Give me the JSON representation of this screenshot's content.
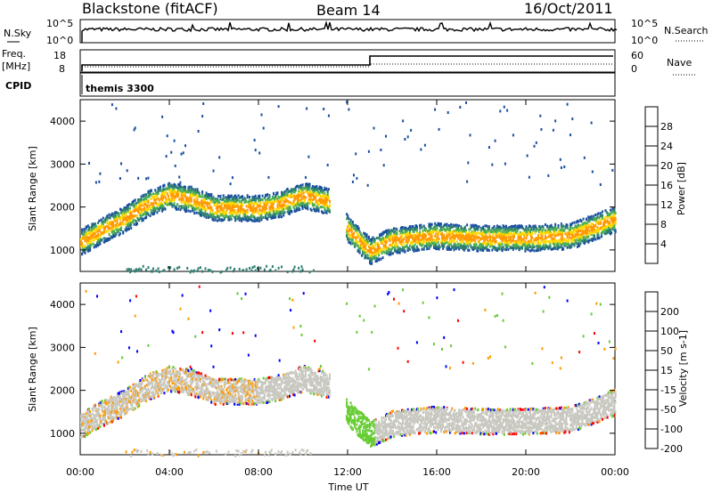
{
  "header": {
    "station": "Blackstone (fitACF)",
    "beam": "Beam 14",
    "date": "16/Oct/2011"
  },
  "panels": {
    "noise": {
      "left_label": "N.Sky",
      "right_label": "N.Search",
      "left_ticks": [
        "10^5",
        "10^0"
      ],
      "right_ticks": [
        "10^5",
        "10^0"
      ]
    },
    "freq": {
      "left_label_1": "Freq.",
      "left_label_2": "[MHz]",
      "left_ticks": [
        "18",
        "8"
      ],
      "right_label": "Nave",
      "right_ticks": [
        "60",
        "0"
      ]
    },
    "cpid": {
      "label": "CPID",
      "value": "themis 3300"
    }
  },
  "colors": {
    "power_scale": [
      "#0000ff",
      "#1a4fa0",
      "#2e7e73",
      "#4caf50",
      "#ffd700",
      "#ff9900",
      "#ff5500",
      "#ff0000"
    ],
    "velocity_scale": [
      "#0000ff",
      "#1a4fa0",
      "#2e7e73",
      "#66cc33",
      "#c8c8c0",
      "#ff9900",
      "#ff6600",
      "#ff0000"
    ]
  },
  "chart_data": [
    {
      "type": "heatmap",
      "name": "power",
      "xlabel": "",
      "ylabel": "Slant Range [km]",
      "xlim": [
        0,
        24
      ],
      "ylim": [
        500,
        4500
      ],
      "yticks": [
        1000,
        2000,
        3000,
        4000
      ],
      "colorbar": {
        "label": "Power [dB]",
        "ticks": [
          "4",
          "8",
          "12",
          "16",
          "20",
          "24",
          "28"
        ]
      },
      "scatter_band": [
        {
          "t": 0.0,
          "range": 1200
        },
        {
          "t": 1.0,
          "range": 1500
        },
        {
          "t": 2.0,
          "range": 1750
        },
        {
          "t": 3.0,
          "range": 2100
        },
        {
          "t": 4.0,
          "range": 2300
        },
        {
          "t": 5.0,
          "range": 2200
        },
        {
          "t": 6.0,
          "range": 2000
        },
        {
          "t": 7.0,
          "range": 2000
        },
        {
          "t": 8.0,
          "range": 2000
        },
        {
          "t": 9.0,
          "range": 2100
        },
        {
          "t": 10.0,
          "range": 2300
        },
        {
          "t": 11.5,
          "range": 2100
        },
        {
          "t": 12.0,
          "range": 1500
        },
        {
          "t": 13.0,
          "range": 1000
        },
        {
          "t": 14.0,
          "range": 1250
        },
        {
          "t": 16.0,
          "range": 1350
        },
        {
          "t": 18.0,
          "range": 1300
        },
        {
          "t": 20.0,
          "range": 1300
        },
        {
          "t": 22.0,
          "range": 1350
        },
        {
          "t": 24.0,
          "range": 1750
        }
      ]
    },
    {
      "type": "heatmap",
      "name": "velocity",
      "xlabel": "Time UT",
      "ylabel": "Slant Range [km]",
      "xlim": [
        0,
        24
      ],
      "ylim": [
        500,
        4500
      ],
      "yticks": [
        1000,
        2000,
        3000,
        4000
      ],
      "xticks": [
        "00:00",
        "04:00",
        "08:00",
        "12:00",
        "16:00",
        "20:00",
        "00:00"
      ],
      "colorbar": {
        "label": "Velocity [m s-1]",
        "ticks": [
          "200",
          "100",
          "50",
          "15",
          "-15",
          "-50",
          "-100",
          "-200"
        ]
      }
    }
  ]
}
